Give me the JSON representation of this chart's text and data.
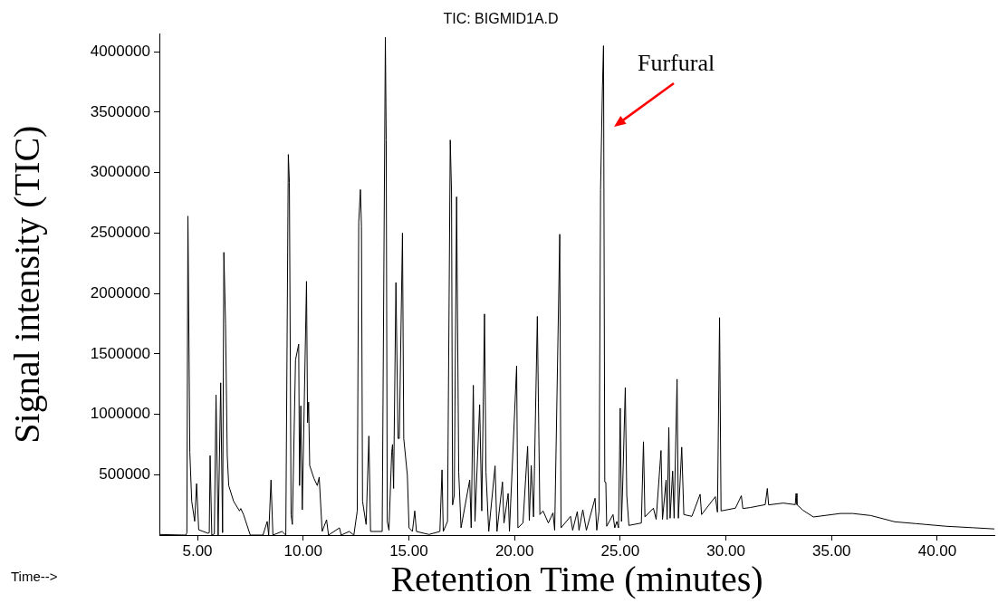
{
  "chart_data": {
    "type": "line",
    "title": "TIC: BIGMID1A.D",
    "xlabel": "Retention Time (minutes)",
    "ylabel": "Signal intensity (TIC)",
    "x": [
      3.2,
      4.45,
      4.5,
      4.55,
      4.64,
      4.73,
      4.87,
      4.96,
      5.06,
      5.5,
      5.56,
      5.6,
      5.68,
      5.8,
      5.88,
      5.98,
      6.1,
      6.19,
      6.25,
      6.33,
      6.41,
      6.48,
      6.71,
      6.99,
      7.05,
      7.18,
      7.5,
      8.1,
      8.3,
      8.37,
      8.48,
      8.57,
      9.0,
      9.18,
      9.3,
      9.35,
      9.43,
      9.49,
      9.64,
      9.79,
      9.83,
      9.89,
      9.96,
      10.16,
      10.21,
      10.26,
      10.31,
      10.51,
      10.67,
      10.76,
      10.9,
      11.11,
      11.2,
      11.72,
      11.8,
      12.18,
      12.4,
      12.56,
      12.63,
      12.71,
      12.76,
      12.81,
      12.98,
      13.11,
      13.19,
      13.74,
      13.89,
      13.93,
      13.98,
      14.06,
      14.19,
      14.23,
      14.28,
      14.39,
      14.49,
      14.55,
      14.7,
      14.76,
      14.93,
      15.01,
      15.17,
      15.28,
      15.36,
      15.95,
      16.47,
      16.57,
      16.63,
      16.83,
      16.96,
      17.02,
      17.07,
      17.15,
      17.26,
      17.36,
      17.47,
      17.88,
      17.95,
      18.05,
      18.13,
      18.35,
      18.45,
      18.58,
      18.65,
      18.78,
      19.08,
      19.17,
      19.43,
      19.5,
      19.7,
      19.76,
      20.1,
      20.16,
      20.4,
      20.62,
      20.7,
      20.79,
      20.9,
      21.08,
      21.13,
      21.2,
      21.35,
      21.6,
      21.82,
      21.9,
      22.14,
      22.2,
      22.65,
      22.75,
      22.97,
      23.05,
      23.23,
      23.4,
      23.81,
      23.89,
      24.0,
      24.07,
      24.16,
      24.21,
      24.27,
      24.32,
      24.36,
      24.66,
      24.74,
      24.84,
      24.92,
      25.0,
      25.06,
      25.11,
      25.24,
      25.31,
      25.41,
      26.0,
      26.1,
      26.17,
      26.57,
      26.7,
      26.93,
      27.0,
      27.17,
      27.22,
      27.3,
      27.36,
      27.48,
      27.55,
      27.69,
      27.75,
      27.91,
      28.01,
      28.39,
      28.78,
      28.85,
      29.5,
      29.6,
      29.7,
      29.77,
      30.45,
      30.73,
      30.8,
      31.15,
      31.86,
      31.96,
      32.02,
      32.71,
      33.28,
      33.32,
      33.36,
      33.64,
      34.14,
      35.42,
      35.99,
      36.85,
      37.99,
      38.99,
      40.42,
      41.7,
      42.7
    ],
    "series": [
      {
        "color": "#000000",
        "values": [
          5000,
          0,
          20000,
          2640000,
          685000,
          280000,
          114000,
          426000,
          44000,
          15000,
          20000,
          658000,
          0,
          10000,
          1160000,
          0,
          1260000,
          20000,
          2340000,
          1750000,
          660000,
          410000,
          280000,
          200000,
          220000,
          170000,
          0,
          0,
          113000,
          0,
          456000,
          0,
          30000,
          0,
          3150000,
          2920000,
          170000,
          88000,
          1450000,
          1580000,
          410000,
          1070000,
          210000,
          2100000,
          930000,
          1100000,
          576000,
          470000,
          410000,
          480000,
          30000,
          127000,
          0,
          60000,
          0,
          30000,
          0,
          200000,
          2590000,
          2860000,
          2550000,
          280000,
          88000,
          820000,
          30000,
          30000,
          4120000,
          3270000,
          113000,
          40000,
          685000,
          750000,
          386000,
          2090000,
          800000,
          800000,
          2500000,
          800000,
          495000,
          60000,
          30000,
          200000,
          30000,
          5000,
          30000,
          540000,
          30000,
          113000,
          3270000,
          2840000,
          250000,
          330000,
          2800000,
          520000,
          60000,
          456000,
          60000,
          1240000,
          113000,
          1080000,
          200000,
          1830000,
          520000,
          30000,
          573000,
          30000,
          440000,
          100000,
          345000,
          30000,
          1400000,
          60000,
          100000,
          735000,
          120000,
          576000,
          150000,
          1810000,
          1100000,
          170000,
          200000,
          100000,
          184000,
          40000,
          2490000,
          60000,
          155000,
          40000,
          195000,
          40000,
          210000,
          40000,
          305000,
          40000,
          200000,
          2860000,
          3710000,
          4050000,
          440000,
          436000,
          73000,
          170000,
          60000,
          113000,
          60000,
          1050000,
          113000,
          360000,
          1220000,
          330000,
          80000,
          100000,
          773000,
          150000,
          223000,
          130000,
          700000,
          130000,
          456000,
          130000,
          890000,
          140000,
          530000,
          140000,
          1290000,
          140000,
          728000,
          170000,
          155000,
          338000,
          170000,
          318000,
          190000,
          1800000,
          200000,
          223000,
          326000,
          220000,
          228000,
          252000,
          386000,
          250000,
          265000,
          252000,
          345000,
          252000,
          206000,
          150000,
          179000,
          179000,
          162000,
          110000,
          95000,
          73000,
          61000,
          51000
        ]
      }
    ],
    "xlim": [
      3.2,
      42.7
    ],
    "xticks": [
      {
        "value": 5,
        "label": "5.00"
      },
      {
        "value": 10,
        "label": "10.00"
      },
      {
        "value": 15,
        "label": "15.00"
      },
      {
        "value": 20,
        "label": "20.00"
      },
      {
        "value": 25,
        "label": "25.00"
      },
      {
        "value": 30,
        "label": "30.00"
      },
      {
        "value": 35,
        "label": "35.00"
      },
      {
        "value": 40,
        "label": "40.00"
      }
    ],
    "ylim": [
      0,
      4150000
    ],
    "yticks": [
      500000,
      1000000,
      1500000,
      2000000,
      2500000,
      3000000,
      3500000,
      4000000
    ],
    "marker": "none",
    "line_style": "solid",
    "legend": false,
    "annotations": [
      "Furfural",
      "Time-->"
    ]
  }
}
